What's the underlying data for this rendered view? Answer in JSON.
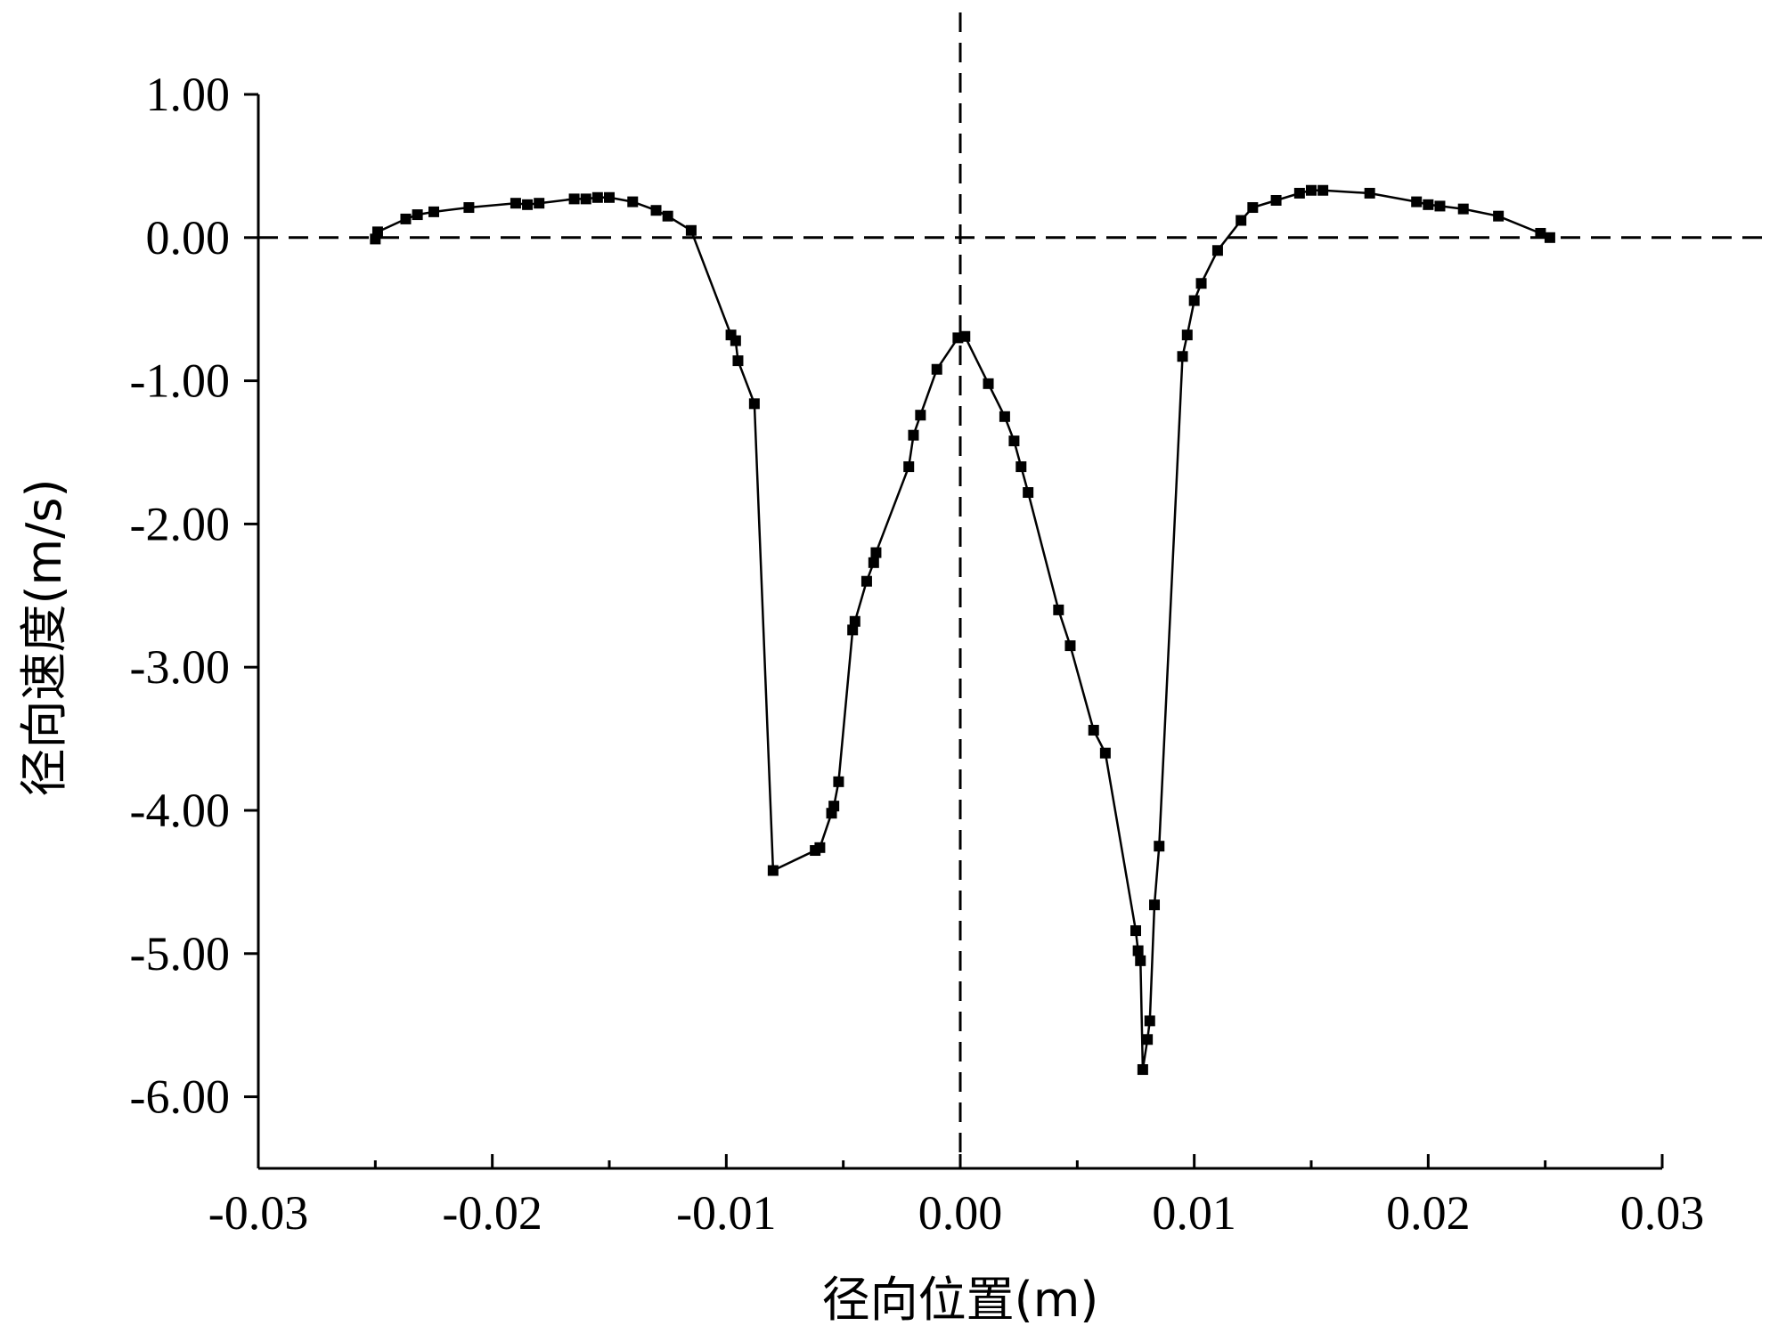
{
  "chart_data": {
    "type": "line",
    "title": "",
    "xlabel": "径向位置(m)",
    "ylabel": "径向速度(m/s)",
    "xlim": [
      -0.03,
      0.03
    ],
    "ylim": [
      -6.5,
      1.0
    ],
    "x_ticks": [
      -0.03,
      -0.02,
      -0.01,
      0.0,
      0.01,
      0.02,
      0.03
    ],
    "x_tick_labels": [
      "-0.03",
      "-0.02",
      "-0.01",
      "0.00",
      "0.01",
      "0.02",
      "0.03"
    ],
    "y_ticks": [
      1.0,
      0.0,
      -1.0,
      -2.0,
      -3.0,
      -4.0,
      -5.0,
      -6.0
    ],
    "y_tick_labels": [
      "1.00",
      "0.00",
      "-1.00",
      "-2.00",
      "-3.00",
      "-4.00",
      "-5.00",
      "-6.00"
    ],
    "reference_lines": {
      "horizontal_at_y": 0,
      "vertical_at_x": 0,
      "style": "dashed"
    },
    "marker": "square",
    "grid": false,
    "series": [
      {
        "points": [
          [
            -0.025,
            -0.01
          ],
          [
            -0.0249,
            0.04
          ],
          [
            -0.0237,
            0.13
          ],
          [
            -0.0232,
            0.16
          ],
          [
            -0.0225,
            0.18
          ],
          [
            -0.021,
            0.21
          ],
          [
            -0.019,
            0.24
          ],
          [
            -0.0185,
            0.23
          ],
          [
            -0.018,
            0.24
          ],
          [
            -0.0165,
            0.27
          ],
          [
            -0.016,
            0.27
          ],
          [
            -0.0155,
            0.28
          ],
          [
            -0.015,
            0.28
          ],
          [
            -0.014,
            0.25
          ],
          [
            -0.013,
            0.19
          ],
          [
            -0.0125,
            0.15
          ],
          [
            -0.0115,
            0.05
          ],
          [
            -0.0098,
            -0.68
          ],
          [
            -0.0096,
            -0.72
          ],
          [
            -0.0095,
            -0.86
          ],
          [
            -0.0088,
            -1.16
          ],
          [
            -0.008,
            -4.42
          ],
          [
            -0.0062,
            -4.28
          ],
          [
            -0.006,
            -4.26
          ],
          [
            -0.0055,
            -4.02
          ],
          [
            -0.0054,
            -3.97
          ],
          [
            -0.0052,
            -3.8
          ],
          [
            -0.0046,
            -2.74
          ],
          [
            -0.0045,
            -2.68
          ],
          [
            -0.004,
            -2.4
          ],
          [
            -0.0037,
            -2.27
          ],
          [
            -0.0036,
            -2.2
          ],
          [
            -0.0022,
            -1.6
          ],
          [
            -0.002,
            -1.38
          ],
          [
            -0.0017,
            -1.24
          ],
          [
            -0.001,
            -0.92
          ],
          [
            -0.0001,
            -0.7
          ],
          [
            0.0002,
            -0.69
          ],
          [
            0.0012,
            -1.02
          ],
          [
            0.0019,
            -1.25
          ],
          [
            0.0023,
            -1.42
          ],
          [
            0.0026,
            -1.6
          ],
          [
            0.0029,
            -1.78
          ],
          [
            0.0042,
            -2.6
          ],
          [
            0.0047,
            -2.85
          ],
          [
            0.0057,
            -3.44
          ],
          [
            0.0062,
            -3.6
          ],
          [
            0.0075,
            -4.84
          ],
          [
            0.0076,
            -4.98
          ],
          [
            0.0077,
            -5.05
          ],
          [
            0.0078,
            -5.81
          ],
          [
            0.008,
            -5.6
          ],
          [
            0.0081,
            -5.47
          ],
          [
            0.0083,
            -4.66
          ],
          [
            0.0085,
            -4.25
          ],
          [
            0.0095,
            -0.83
          ],
          [
            0.0097,
            -0.68
          ],
          [
            0.01,
            -0.44
          ],
          [
            0.0103,
            -0.32
          ],
          [
            0.011,
            -0.09
          ],
          [
            0.012,
            0.12
          ],
          [
            0.0125,
            0.21
          ],
          [
            0.0135,
            0.26
          ],
          [
            0.0145,
            0.31
          ],
          [
            0.015,
            0.33
          ],
          [
            0.0155,
            0.33
          ],
          [
            0.0175,
            0.31
          ],
          [
            0.0195,
            0.25
          ],
          [
            0.02,
            0.23
          ],
          [
            0.0205,
            0.22
          ],
          [
            0.0215,
            0.2
          ],
          [
            0.023,
            0.15
          ],
          [
            0.0248,
            0.03
          ],
          [
            0.0252,
            0.0
          ]
        ]
      }
    ]
  }
}
